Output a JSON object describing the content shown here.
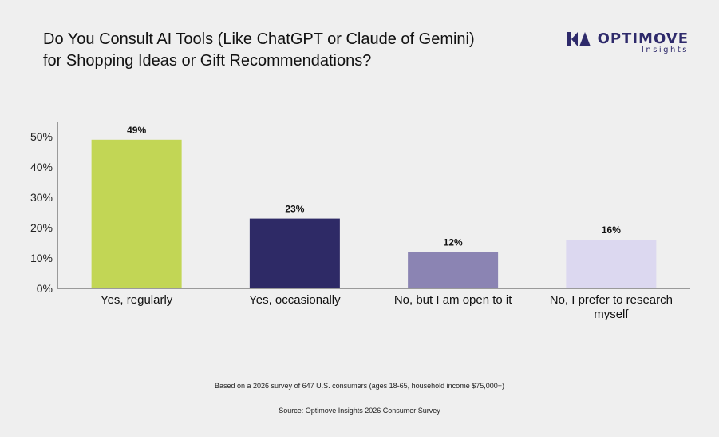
{
  "header": {
    "title": "Do You Consult AI Tools (Like ChatGPT or Claude of Gemini) for Shopping Ideas or Gift Recommendations?"
  },
  "logo": {
    "name": "OPTIMOVE",
    "sub": "Insights",
    "icon": "optimove-logo-icon",
    "color": "#2e2a6b"
  },
  "chart_data": {
    "type": "bar",
    "title": "Do You Consult AI Tools (Like ChatGPT or Claude of Gemini) for Shopping Ideas or Gift Recommendations?",
    "categories": [
      "Yes, regularly",
      "Yes, occasionally",
      "No, but I am open to it",
      "No, I prefer to research myself"
    ],
    "category_lines": [
      [
        "Yes, regularly"
      ],
      [
        "Yes, occasionally"
      ],
      [
        "No, but I am open to it"
      ],
      [
        "No, I prefer to research",
        "myself"
      ]
    ],
    "values": [
      49,
      23,
      12,
      16
    ],
    "value_labels": [
      "49%",
      "23%",
      "12%",
      "16%"
    ],
    "colors": [
      "#c2d655",
      "#2e2a66",
      "#8b84b3",
      "#dcd8f0"
    ],
    "yticks": [
      0,
      10,
      20,
      30,
      40,
      50
    ],
    "ytick_labels": [
      "0%",
      "10%",
      "20%",
      "30%",
      "40%",
      "50%"
    ],
    "ylim": [
      0,
      55
    ],
    "xlabel": "",
    "ylabel": "",
    "grid": false,
    "legend": "none"
  },
  "footer": {
    "note": "Based on a 2026 survey of 647 U.S. consumers (ages 18-65, household income $75,000+)",
    "source": "Source: Optimove Insights 2026 Consumer Survey"
  }
}
